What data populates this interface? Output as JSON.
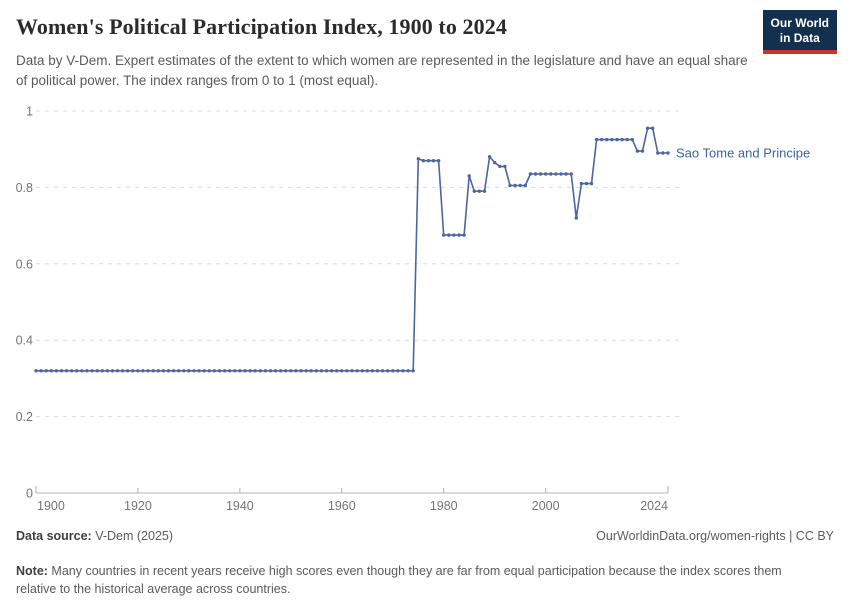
{
  "header": {
    "title": "Women's Political Participation Index, 1900 to 2024",
    "subtitle": "Data by V-Dem. Expert estimates of the extent to which women are represented in the legislature and have an equal share of political power. The index ranges from 0 to 1 (most equal).",
    "logo": {
      "line1": "Our World",
      "line2": "in Data",
      "bg_color": "#13304f",
      "accent_color": "#c9342c"
    }
  },
  "chart_data": {
    "type": "line",
    "title": "Women's Political Participation Index, 1900 to 2024",
    "xlabel": "",
    "ylabel": "",
    "xlim": [
      1900,
      2024
    ],
    "ylim": [
      0,
      1
    ],
    "x_ticks": [
      1900,
      1920,
      1940,
      1960,
      1980,
      2000,
      2024
    ],
    "y_ticks": [
      0,
      0.2,
      0.4,
      0.6,
      0.8,
      1
    ],
    "grid": "horizontal-dashed",
    "legend_position": "right-end-label",
    "line_color": "#4c669f",
    "label_color": "#3d649f",
    "axis_color": "#b3b3b3",
    "grid_color": "#dcdcdc",
    "tick_label_color": "#757575",
    "marker": "dot-every-year",
    "series": [
      {
        "name": "Sao Tome and Principe",
        "segments": [
          {
            "from": 1900,
            "to": 1974,
            "value": 0.32
          },
          {
            "from": 1975,
            "to": 1975,
            "value": 0.875
          },
          {
            "from": 1976,
            "to": 1979,
            "value": 0.87
          },
          {
            "from": 1980,
            "to": 1984,
            "value": 0.675
          },
          {
            "from": 1985,
            "to": 1985,
            "value": 0.83
          },
          {
            "from": 1986,
            "to": 1988,
            "value": 0.79
          },
          {
            "from": 1989,
            "to": 1989,
            "value": 0.88
          },
          {
            "from": 1990,
            "to": 1990,
            "value": 0.865
          },
          {
            "from": 1991,
            "to": 1992,
            "value": 0.855
          },
          {
            "from": 1993,
            "to": 1996,
            "value": 0.805
          },
          {
            "from": 1997,
            "to": 2005,
            "value": 0.835
          },
          {
            "from": 2006,
            "to": 2006,
            "value": 0.72
          },
          {
            "from": 2007,
            "to": 2009,
            "value": 0.81
          },
          {
            "from": 2010,
            "to": 2017,
            "value": 0.925
          },
          {
            "from": 2018,
            "to": 2019,
            "value": 0.895
          },
          {
            "from": 2020,
            "to": 2021,
            "value": 0.955
          },
          {
            "from": 2022,
            "to": 2024,
            "value": 0.89
          }
        ]
      }
    ]
  },
  "footer": {
    "source_label": "Data source:",
    "source_value": " V-Dem (2025)",
    "link": "OurWorldinData.org/women-rights | CC BY",
    "note_label": "Note:",
    "note_value": " Many countries in recent years receive high scores even though they are far from equal participation because the index scores them relative to the historical average across countries."
  }
}
